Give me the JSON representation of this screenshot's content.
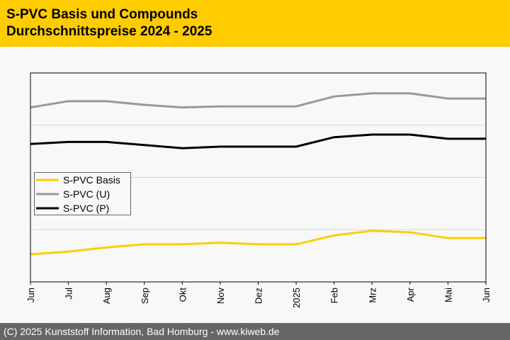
{
  "header": {
    "title_line1": "S-PVC Basis und Compounds",
    "title_line2": "Durchschnittspreise 2024 - 2025"
  },
  "footer": {
    "text": "(C) 2025 Kunststoff Information, Bad Homburg - www.kiweb.de"
  },
  "chart_data": {
    "type": "line",
    "title": "S-PVC Basis und Compounds Durchschnittspreise 2024 - 2025",
    "xlabel": "",
    "ylabel": "",
    "categories": [
      "Jun",
      "Jul",
      "Aug",
      "Sep",
      "Okt",
      "Nov",
      "Dez",
      "2025",
      "Feb",
      "Mrz",
      "Apr",
      "Mai",
      "Jun"
    ],
    "ylim": [
      0,
      4
    ],
    "grid": true,
    "legend_position": "center-left",
    "series": [
      {
        "name": "S-PVC Basis",
        "color": "#ffcc00",
        "values": [
          0.53,
          0.58,
          0.66,
          0.72,
          0.72,
          0.75,
          0.72,
          0.72,
          0.89,
          0.98,
          0.95,
          0.84,
          0.84
        ]
      },
      {
        "name": "S-PVC (U)",
        "color": "#999999",
        "values": [
          3.34,
          3.46,
          3.46,
          3.39,
          3.34,
          3.36,
          3.36,
          3.36,
          3.55,
          3.61,
          3.61,
          3.51,
          3.51
        ]
      },
      {
        "name": "S-PVC (P)",
        "color": "#000000",
        "values": [
          2.64,
          2.68,
          2.68,
          2.62,
          2.56,
          2.59,
          2.59,
          2.59,
          2.77,
          2.82,
          2.82,
          2.74,
          2.74
        ]
      }
    ]
  }
}
